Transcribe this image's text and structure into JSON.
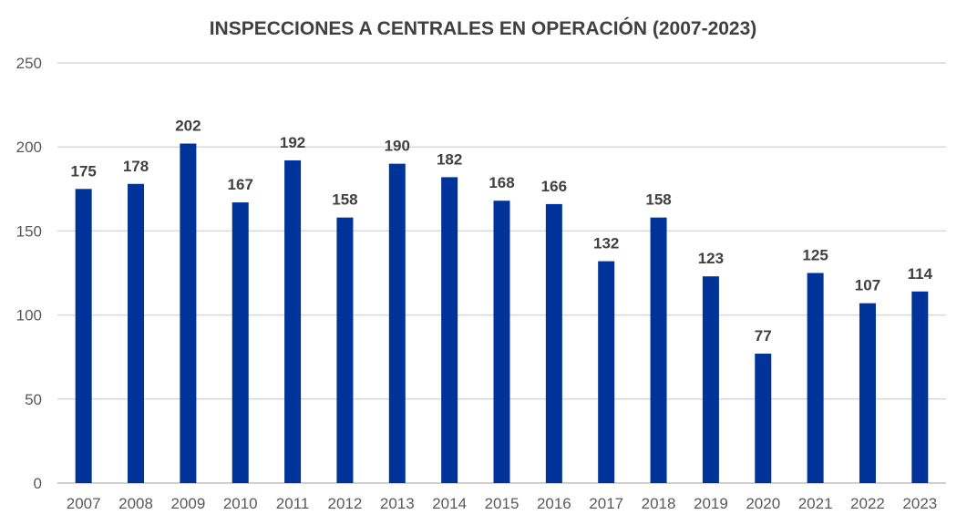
{
  "chart_data": {
    "type": "bar",
    "title": "INSPECCIONES A CENTRALES EN OPERACIÓN (2007-2023)",
    "xlabel": "",
    "ylabel": "",
    "categories": [
      "2007",
      "2008",
      "2009",
      "2010",
      "2011",
      "2012",
      "2013",
      "2014",
      "2015",
      "2016",
      "2017",
      "2018",
      "2019",
      "2020",
      "2021",
      "2022",
      "2023"
    ],
    "values": [
      175,
      178,
      202,
      167,
      192,
      158,
      190,
      182,
      168,
      166,
      132,
      158,
      123,
      77,
      125,
      107,
      114
    ],
    "ylim": [
      0,
      250
    ],
    "yticks": [
      0,
      50,
      100,
      150,
      200,
      250
    ],
    "grid": true,
    "legend": "none",
    "bar_color": "#003399"
  }
}
